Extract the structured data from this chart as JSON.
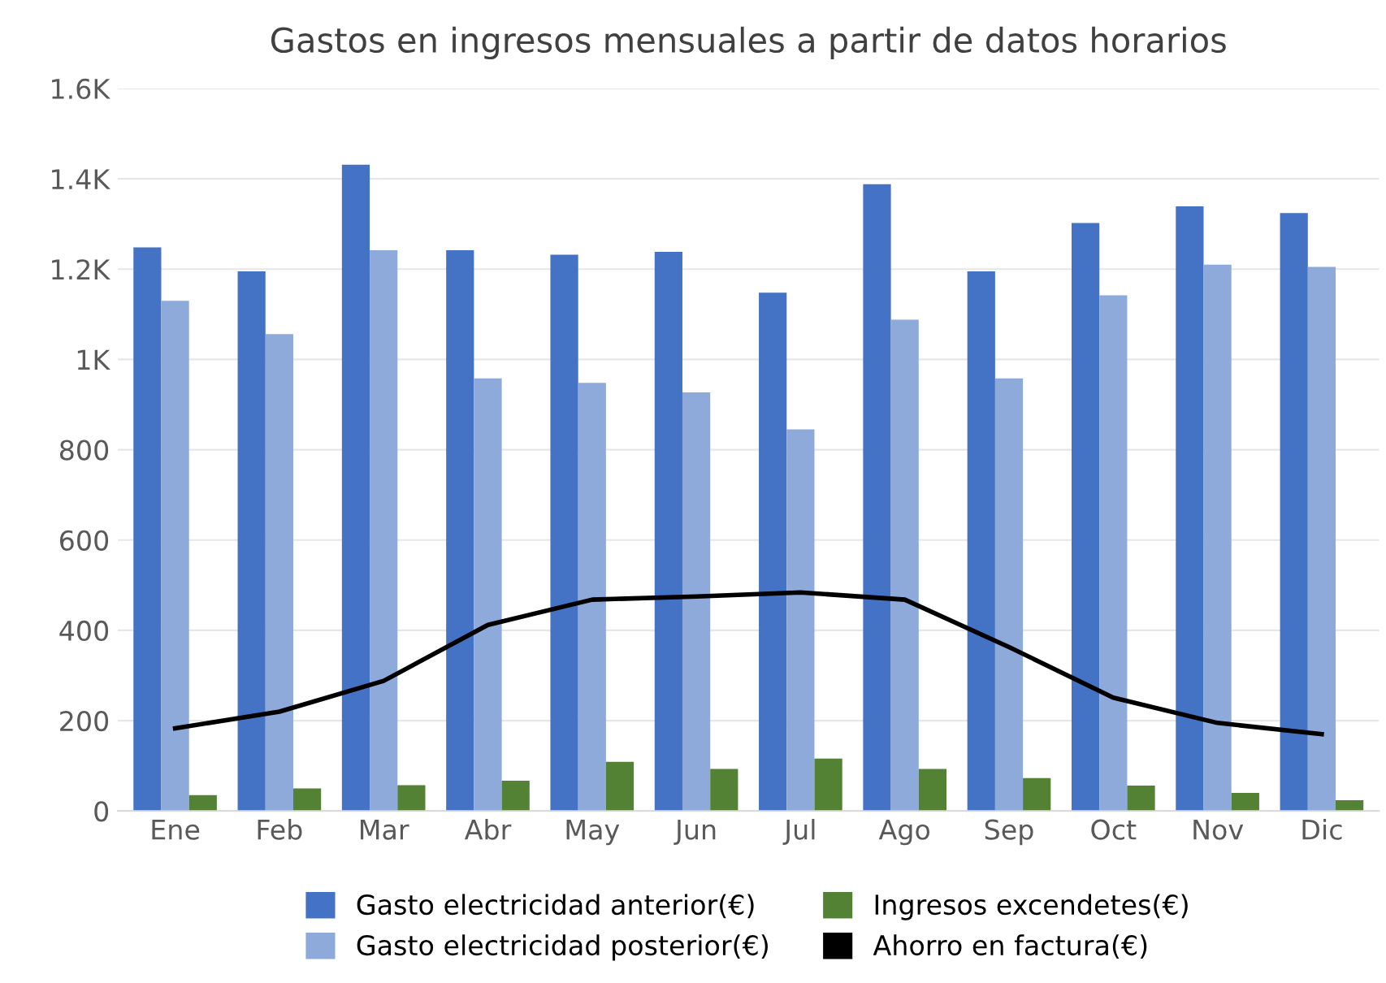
{
  "chart_data": {
    "type": "bar",
    "title": "Gastos en ingresos mensuales a partir de datos horarios",
    "categories": [
      "Ene",
      "Feb",
      "Mar",
      "Abr",
      "May",
      "Jun",
      "Jul",
      "Ago",
      "Sep",
      "Oct",
      "Nov",
      "Dic"
    ],
    "series": [
      {
        "name": "Gasto electricidad anterior(€)",
        "color": "#4472c4",
        "values": [
          1248,
          1195,
          1431,
          1242,
          1232,
          1238,
          1148,
          1388,
          1195,
          1302,
          1339,
          1324
        ]
      },
      {
        "name": "Gasto electricidad posterior(€)",
        "color": "#8eaadb",
        "values": [
          1130,
          1056,
          1242,
          958,
          948,
          927,
          845,
          1088,
          958,
          1142,
          1210,
          1205
        ]
      },
      {
        "name": "Ingresos excendetes(€)",
        "color": "#548235",
        "values": [
          35,
          50,
          57,
          67,
          109,
          93,
          116,
          93,
          73,
          56,
          40,
          24
        ]
      },
      {
        "name": "Ahorro en factura(€)",
        "color": "#000000",
        "type": "line",
        "values": [
          183,
          220,
          288,
          412,
          468,
          475,
          484,
          468,
          363,
          251,
          195,
          170
        ]
      }
    ],
    "ylim": [
      0,
      1600
    ],
    "yticks": [
      0,
      200,
      400,
      600,
      800,
      {
        "value": 1000,
        "label": "1K"
      },
      {
        "value": 1200,
        "label": "1.2K"
      },
      {
        "value": 1400,
        "label": "1.4K"
      },
      {
        "value": 1600,
        "label": "1.6K"
      }
    ],
    "grid": "y",
    "legend": "bottom"
  }
}
